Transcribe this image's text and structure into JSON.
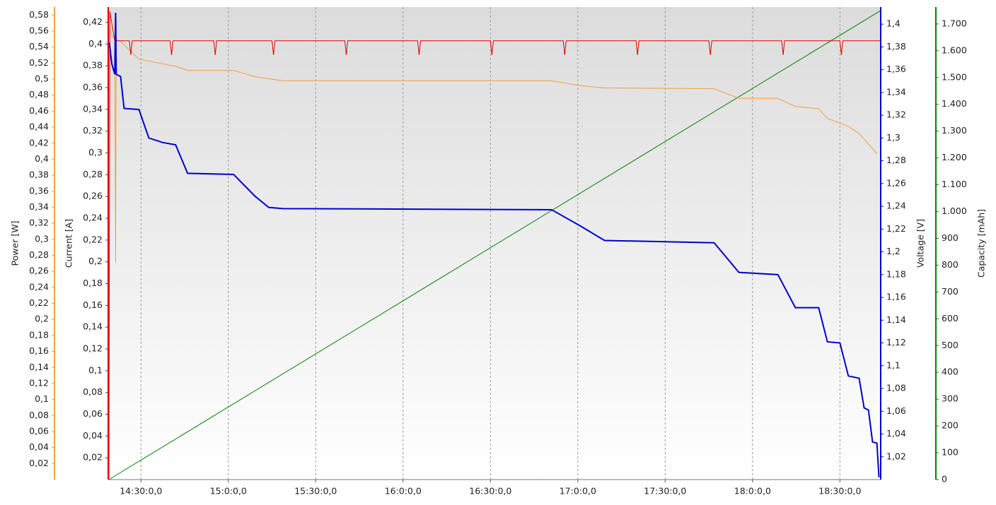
{
  "chart_data": {
    "type": "line",
    "xlim": [
      859,
      1124
    ],
    "xticks": [
      {
        "value": 870,
        "label": "14:30:0,0"
      },
      {
        "value": 900,
        "label": "15:0:0,0"
      },
      {
        "value": 930,
        "label": "15:30:0,0"
      },
      {
        "value": 960,
        "label": "16:0:0,0"
      },
      {
        "value": 990,
        "label": "16:30:0,0"
      },
      {
        "value": 1020,
        "label": "17:0:0,0"
      },
      {
        "value": 1050,
        "label": "17:30:0,0"
      },
      {
        "value": 1080,
        "label": "18:0:0,0"
      },
      {
        "value": 1110,
        "label": "18:30:0,0"
      }
    ],
    "grid": true,
    "axes": [
      {
        "title": "Power [W]",
        "color": "#f0a040",
        "ylim": [
          0,
          0.59
        ],
        "yticks": [
          {
            "value": 0.02,
            "label": "0,02"
          },
          {
            "value": 0.04,
            "label": "0,04"
          },
          {
            "value": 0.06,
            "label": "0,06"
          },
          {
            "value": 0.08,
            "label": "0,08"
          },
          {
            "value": 0.1,
            "label": "0,1"
          },
          {
            "value": 0.12,
            "label": "0,12"
          },
          {
            "value": 0.14,
            "label": "0,14"
          },
          {
            "value": 0.16,
            "label": "0,16"
          },
          {
            "value": 0.18,
            "label": "0,18"
          },
          {
            "value": 0.2,
            "label": "0,2"
          },
          {
            "value": 0.22,
            "label": "0,22"
          },
          {
            "value": 0.24,
            "label": "0,24"
          },
          {
            "value": 0.26,
            "label": "0,26"
          },
          {
            "value": 0.28,
            "label": "0,28"
          },
          {
            "value": 0.3,
            "label": "0,3"
          },
          {
            "value": 0.32,
            "label": "0,32"
          },
          {
            "value": 0.34,
            "label": "0,34"
          },
          {
            "value": 0.36,
            "label": "0,36"
          },
          {
            "value": 0.38,
            "label": "0,38"
          },
          {
            "value": 0.4,
            "label": "0,4"
          },
          {
            "value": 0.42,
            "label": "0,42"
          },
          {
            "value": 0.44,
            "label": "0,44"
          },
          {
            "value": 0.46,
            "label": "0,46"
          },
          {
            "value": 0.48,
            "label": "0,48"
          },
          {
            "value": 0.5,
            "label": "0,5"
          },
          {
            "value": 0.52,
            "label": "0,52"
          },
          {
            "value": 0.54,
            "label": "0,54"
          },
          {
            "value": 0.56,
            "label": "0,56"
          },
          {
            "value": 0.58,
            "label": "0,58"
          }
        ]
      },
      {
        "title": "Current [A]",
        "color": "#e00000",
        "ylim": [
          0,
          0.434
        ],
        "yticks": [
          {
            "value": 0.02,
            "label": "0,02"
          },
          {
            "value": 0.04,
            "label": "0,04"
          },
          {
            "value": 0.06,
            "label": "0,06"
          },
          {
            "value": 0.08,
            "label": "0,08"
          },
          {
            "value": 0.1,
            "label": "0,1"
          },
          {
            "value": 0.12,
            "label": "0,12"
          },
          {
            "value": 0.14,
            "label": "0,14"
          },
          {
            "value": 0.16,
            "label": "0,16"
          },
          {
            "value": 0.18,
            "label": "0,18"
          },
          {
            "value": 0.2,
            "label": "0,2"
          },
          {
            "value": 0.22,
            "label": "0,22"
          },
          {
            "value": 0.24,
            "label": "0,24"
          },
          {
            "value": 0.26,
            "label": "0,26"
          },
          {
            "value": 0.28,
            "label": "0,28"
          },
          {
            "value": 0.3,
            "label": "0,3"
          },
          {
            "value": 0.32,
            "label": "0,32"
          },
          {
            "value": 0.34,
            "label": "0,34"
          },
          {
            "value": 0.36,
            "label": "0,36"
          },
          {
            "value": 0.38,
            "label": "0,38"
          },
          {
            "value": 0.4,
            "label": "0,4"
          },
          {
            "value": 0.42,
            "label": "0,42"
          }
        ]
      },
      {
        "title": "Voltage [V]",
        "color": "#0000d0",
        "ylim": [
          1.0,
          1.415
        ],
        "yticks": [
          {
            "value": 1.02,
            "label": "1,02"
          },
          {
            "value": 1.04,
            "label": "1,04"
          },
          {
            "value": 1.06,
            "label": "1,06"
          },
          {
            "value": 1.08,
            "label": "1,08"
          },
          {
            "value": 1.1,
            "label": "1,1"
          },
          {
            "value": 1.12,
            "label": "1,12"
          },
          {
            "value": 1.14,
            "label": "1,14"
          },
          {
            "value": 1.16,
            "label": "1,16"
          },
          {
            "value": 1.18,
            "label": "1,18"
          },
          {
            "value": 1.2,
            "label": "1,2"
          },
          {
            "value": 1.22,
            "label": "1,22"
          },
          {
            "value": 1.24,
            "label": "1,24"
          },
          {
            "value": 1.26,
            "label": "1,26"
          },
          {
            "value": 1.28,
            "label": "1,28"
          },
          {
            "value": 1.3,
            "label": "1,3"
          },
          {
            "value": 1.32,
            "label": "1,32"
          },
          {
            "value": 1.34,
            "label": "1,34"
          },
          {
            "value": 1.36,
            "label": "1,36"
          },
          {
            "value": 1.38,
            "label": "1,38"
          },
          {
            "value": 1.4,
            "label": "1,4"
          }
        ]
      },
      {
        "title": "Capacity [mAh]",
        "color": "#008000",
        "ylim": [
          0,
          1763
        ],
        "yticks": [
          0,
          100,
          200,
          300,
          400,
          500,
          600,
          700,
          800,
          900,
          {
            "value": 1000,
            "label": "1.000"
          },
          {
            "value": 1100,
            "label": "1.100"
          },
          {
            "value": 1200,
            "label": "1.200"
          },
          {
            "value": 1300,
            "label": "1.300"
          },
          {
            "value": 1400,
            "label": "1.400"
          },
          {
            "value": 1500,
            "label": "1.500"
          },
          {
            "value": 1600,
            "label": "1.600"
          },
          {
            "value": 1700,
            "label": "1.700"
          }
        ]
      }
    ],
    "series": [
      {
        "color": "#008000",
        "axis": 3,
        "x": [
          859,
          1124
        ],
        "values": [
          0,
          1750
        ]
      },
      {
        "color": "#f0a040",
        "axis": 0,
        "x": [
          859.1,
          860.0,
          861.0,
          861.3,
          861.5,
          863.0,
          869.3,
          881.9,
          886.0,
          901.8,
          909.1,
          918.8,
          1011.0,
          1020.7,
          1029.2,
          1066.8,
          1075.3,
          1088.7,
          1094.7,
          1102.7,
          1105.7,
          1112.9,
          1116.6,
          1122.7
        ],
        "values": [
          0.564,
          0.555,
          0.55,
          0.271,
          0.55,
          0.547,
          0.525,
          0.516,
          0.511,
          0.511,
          0.503,
          0.498,
          0.498,
          0.492,
          0.489,
          0.488,
          0.476,
          0.476,
          0.466,
          0.463,
          0.451,
          0.441,
          0.432,
          0.407
        ]
      },
      {
        "color": "#e00000",
        "axis": 1,
        "x": [
          859.0,
          859.3,
          861,
          866,
          866.5,
          867,
          880,
          880.5,
          881,
          895,
          895.5,
          896,
          915,
          915.5,
          916,
          940,
          940.5,
          941,
          965,
          965.5,
          966,
          990,
          990.5,
          991,
          1015,
          1015.5,
          1016,
          1040,
          1040.5,
          1041,
          1065,
          1065.5,
          1066,
          1090,
          1090.5,
          1091,
          1110,
          1110.5,
          1111,
          1124
        ],
        "values": [
          0,
          0.43,
          0.403,
          0.403,
          0.39,
          0.403,
          0.403,
          0.39,
          0.403,
          0.403,
          0.39,
          0.403,
          0.403,
          0.39,
          0.403,
          0.403,
          0.39,
          0.403,
          0.403,
          0.39,
          0.403,
          0.403,
          0.39,
          0.403,
          0.403,
          0.39,
          0.403,
          0.403,
          0.39,
          0.403,
          0.403,
          0.39,
          0.403,
          0.403,
          0.39,
          0.403,
          0.403,
          0.39,
          0.403,
          0.403
        ]
      },
      {
        "color": "#0000d0",
        "axis": 2,
        "x": [
          859.1,
          860.0,
          861.0,
          861.3,
          861.5,
          863.0,
          864.2,
          869.3,
          872.7,
          877.5,
          881.9,
          886.0,
          901.8,
          909.1,
          913.9,
          918.8,
          1011.0,
          1020.7,
          1029.2,
          1066.8,
          1075.3,
          1088.7,
          1094.7,
          1102.7,
          1105.7,
          1110.0,
          1112.9,
          1116.6,
          1118.3,
          1119.8,
          1121.2,
          1122.7,
          1123.4
        ],
        "values": [
          1.384,
          1.365,
          1.356,
          1.41,
          1.356,
          1.354,
          1.326,
          1.325,
          1.3,
          1.296,
          1.294,
          1.269,
          1.268,
          1.249,
          1.239,
          1.238,
          1.237,
          1.223,
          1.21,
          1.208,
          1.182,
          1.18,
          1.151,
          1.151,
          1.121,
          1.12,
          1.091,
          1.089,
          1.063,
          1.061,
          1.033,
          1.032,
          1.002
        ]
      }
    ]
  }
}
